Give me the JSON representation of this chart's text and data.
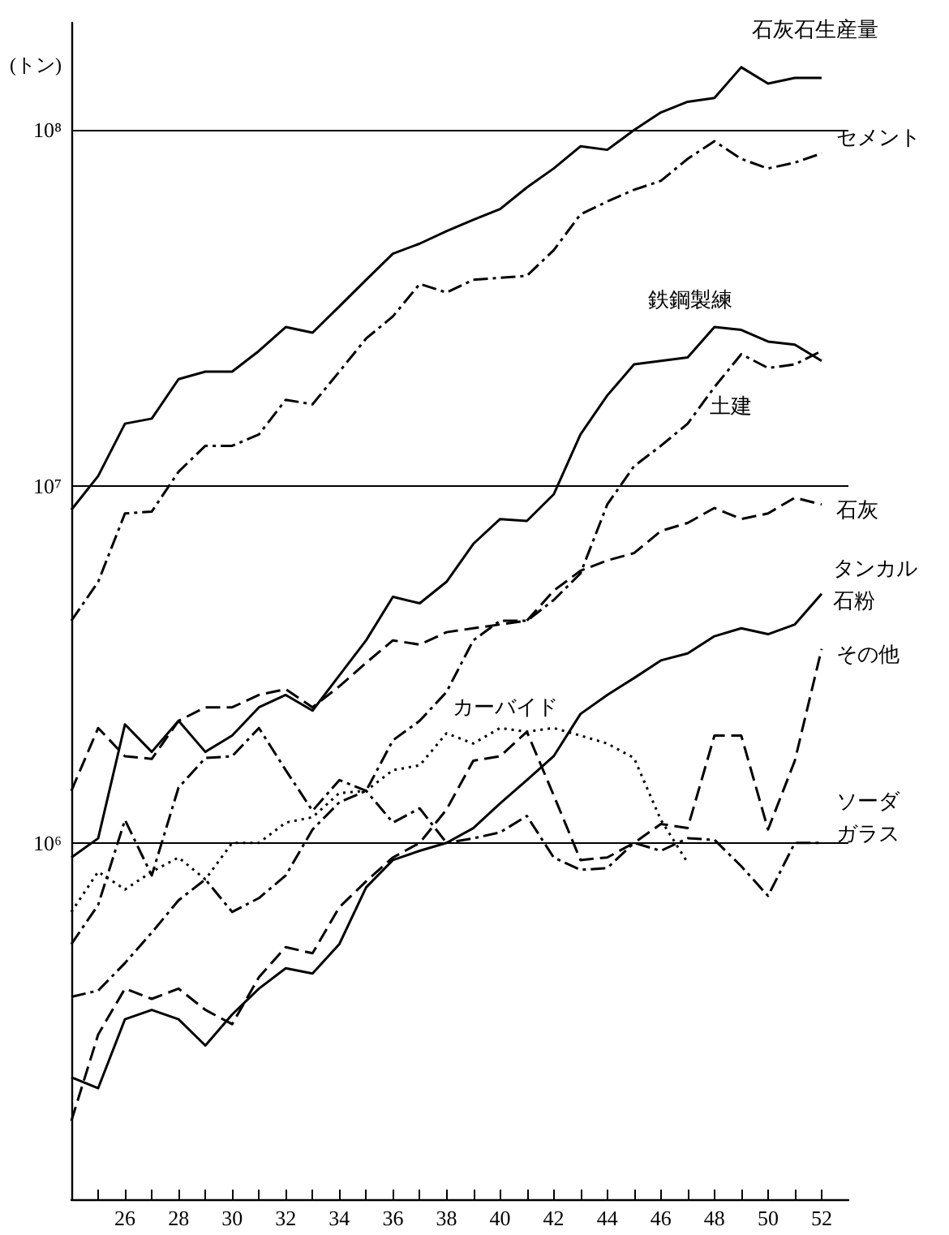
{
  "chart_data": {
    "type": "line",
    "ylabel": "(トン)",
    "log": "y",
    "grid": "y",
    "marker": "none",
    "x": [
      24,
      25,
      26,
      27,
      28,
      29,
      30,
      31,
      32,
      33,
      34,
      35,
      36,
      37,
      38,
      39,
      40,
      41,
      42,
      43,
      44,
      45,
      46,
      47,
      48,
      49,
      50,
      51,
      52
    ],
    "xlim": [
      24,
      53
    ],
    "xticks": [
      {
        "value": 25,
        "label": null
      },
      26,
      {
        "value": 27,
        "label": null
      },
      28,
      {
        "value": 29,
        "label": null
      },
      30,
      {
        "value": 31,
        "label": null
      },
      32,
      {
        "value": 33,
        "label": null
      },
      34,
      {
        "value": 35,
        "label": null
      },
      36,
      {
        "value": 37,
        "label": null
      },
      38,
      {
        "value": 39,
        "label": null
      },
      40,
      {
        "value": 41,
        "label": null
      },
      42,
      {
        "value": 43,
        "label": null
      },
      44,
      {
        "value": 45,
        "label": null
      },
      46,
      {
        "value": 47,
        "label": null
      },
      48,
      {
        "value": 49,
        "label": null
      },
      50,
      {
        "value": 51,
        "label": null
      },
      52
    ],
    "ylim": [
      100000,
      200000000
    ],
    "yticks": [
      {
        "value": 1000000,
        "label": "10⁶"
      },
      {
        "value": 10000000,
        "label": "10⁷"
      },
      {
        "value": 100000000,
        "label": "10⁸"
      }
    ],
    "series": [
      {
        "name": "石灰石生産量",
        "color": "#000000",
        "line_style": "solid",
        "values": [
          8600000,
          10700000,
          15000000,
          15500000,
          20000000,
          21000000,
          21000000,
          24000000,
          28000000,
          27000000,
          32000000,
          38000000,
          45000000,
          48000000,
          52000000,
          56000000,
          60000000,
          69000000,
          78000000,
          90000000,
          88000000,
          100000000,
          112000000,
          120000000,
          123000000,
          150000000,
          135000000,
          140000000,
          140000000
        ]
      },
      {
        "name": "セメント",
        "color": "#000000",
        "line_style": "dashdot",
        "values": [
          4200000,
          5400000,
          8400000,
          8500000,
          11000000,
          13000000,
          13000000,
          14000000,
          17500000,
          17000000,
          21000000,
          26000000,
          30000000,
          37000000,
          35000000,
          38000000,
          38500000,
          39000000,
          46000000,
          58000000,
          63000000,
          68000000,
          72000000,
          83000000,
          93000000,
          83000000,
          78000000,
          81000000,
          86000000
        ]
      },
      {
        "name": "鉄鋼製練",
        "color": "#000000",
        "line_style": "solid",
        "values": [
          910000,
          1030000,
          2150000,
          1800000,
          2200000,
          1800000,
          2000000,
          2400000,
          2600000,
          2350000,
          2950000,
          3700000,
          4900000,
          4700000,
          5400000,
          6900000,
          8100000,
          8000000,
          9500000,
          14000000,
          18000000,
          22000000,
          22500000,
          23000000,
          28000000,
          27500000,
          25500000,
          25000000,
          22500000
        ]
      },
      {
        "name": "土建",
        "color": "#000000",
        "line_style": "dashdot",
        "values": [
          370000,
          385000,
          460000,
          560000,
          690000,
          790000,
          640000,
          700000,
          810000,
          1090000,
          1300000,
          1400000,
          1940000,
          2200000,
          2650000,
          3700000,
          4200000,
          4200000,
          4800000,
          5700000,
          8900000,
          11400000,
          13000000,
          15000000,
          19000000,
          23500000,
          21500000,
          22000000,
          24000000
        ]
      },
      {
        "name": "石灰",
        "color": "#000000",
        "line_style": "dashed",
        "values": [
          1400000,
          2100000,
          1750000,
          1720000,
          2200000,
          2400000,
          2400000,
          2600000,
          2700000,
          2400000,
          2750000,
          3200000,
          3700000,
          3600000,
          3900000,
          4000000,
          4100000,
          4200000,
          5100000,
          5800000,
          6200000,
          6500000,
          7500000,
          7900000,
          8700000,
          8100000,
          8400000,
          9300000,
          8900000
        ]
      },
      {
        "name": "タンカル石粉",
        "color": "#000000",
        "line_style": "solid",
        "values": [
          220000,
          205000,
          320000,
          340000,
          320000,
          270000,
          330000,
          390000,
          445000,
          430000,
          520000,
          750000,
          895000,
          950000,
          1000000,
          1100000,
          1290000,
          1500000,
          1750000,
          2300000,
          2600000,
          2900000,
          3250000,
          3400000,
          3800000,
          4000000,
          3850000,
          4100000,
          5000000
        ]
      },
      {
        "name": "その他",
        "color": "#000000",
        "line_style": "dashed",
        "values": [
          166000,
          290000,
          390000,
          365000,
          390000,
          340000,
          310000,
          420000,
          510000,
          490000,
          660000,
          780000,
          910000,
          1000000,
          1240000,
          1700000,
          1750000,
          2050000,
          1360000,
          895000,
          910000,
          1000000,
          1130000,
          1100000,
          2000000,
          2000000,
          1090000,
          1700000,
          3500000
        ]
      },
      {
        "name": "カーバイド",
        "color": "#000000",
        "line_style": "dotted",
        "values": [
          640000,
          830000,
          740000,
          830000,
          910000,
          790000,
          1000000,
          1000000,
          1140000,
          1180000,
          1380000,
          1400000,
          1600000,
          1650000,
          2030000,
          1900000,
          2100000,
          2050000,
          2100000,
          2000000,
          1900000,
          1730000,
          1160000,
          880000,
          null,
          null,
          null,
          null,
          null
        ]
      },
      {
        "name": "ソーダガラス",
        "color": "#000000",
        "line_style": "dashdot",
        "values": [
          520000,
          670000,
          1160000,
          810000,
          1430000,
          1730000,
          1750000,
          2100000,
          1600000,
          1230000,
          1500000,
          1400000,
          1140000,
          1250000,
          1000000,
          1030000,
          1070000,
          1190000,
          910000,
          840000,
          850000,
          1000000,
          950000,
          1030000,
          1020000,
          860000,
          710000,
          1000000,
          1000000
        ]
      }
    ]
  }
}
